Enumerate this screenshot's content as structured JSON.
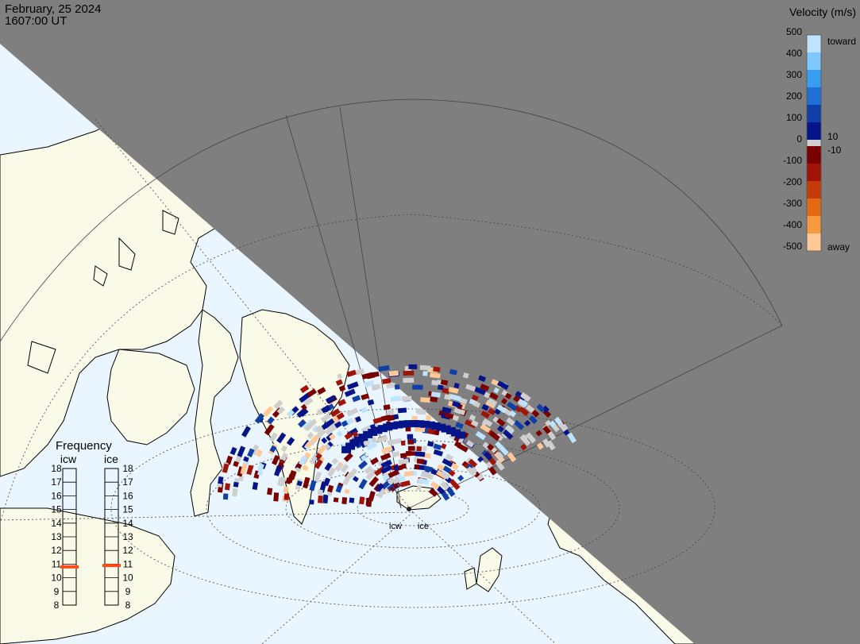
{
  "header": {
    "date": "February, 25 2024",
    "time": "1607:00 UT"
  },
  "velocity_scale": {
    "title": "Velocity (m/s)",
    "toward_label": "toward",
    "away_label": "away",
    "ticks": [
      "500",
      "400",
      "300",
      "200",
      "100",
      "0",
      "-100",
      "-200",
      "-300",
      "-400",
      "-500"
    ],
    "near_zero_pos": "10",
    "near_zero_neg": "-10",
    "colors_toward": [
      "#bfe4ff",
      "#7fc8ff",
      "#3a9ef0",
      "#1f6fd6",
      "#103fa8",
      "#06148a"
    ],
    "colors_away": [
      "#7a0000",
      "#a01408",
      "#c43c0a",
      "#e26a12",
      "#f59a3e",
      "#ffc896"
    ],
    "zero_color": "#cfcfcf"
  },
  "frequency_panel": {
    "title": "Frequency",
    "radars": [
      {
        "code": "icw",
        "frequency_mhz": 10.8
      },
      {
        "code": "ice",
        "frequency_mhz": 10.9
      }
    ],
    "ticks": [
      "18",
      "17",
      "16",
      "15",
      "14",
      "13",
      "12",
      "11",
      "10",
      "9",
      "8"
    ],
    "min": 8,
    "max": 18,
    "marker_color": "#ff4a1a"
  },
  "radar_labels": {
    "west": "icw",
    "east": "ice"
  },
  "map": {
    "ocean_sunlit": "#eaf6ff",
    "land_sunlit": "#fafae8",
    "night_shade": "#7f7f7f",
    "coast_color": "#000000"
  }
}
